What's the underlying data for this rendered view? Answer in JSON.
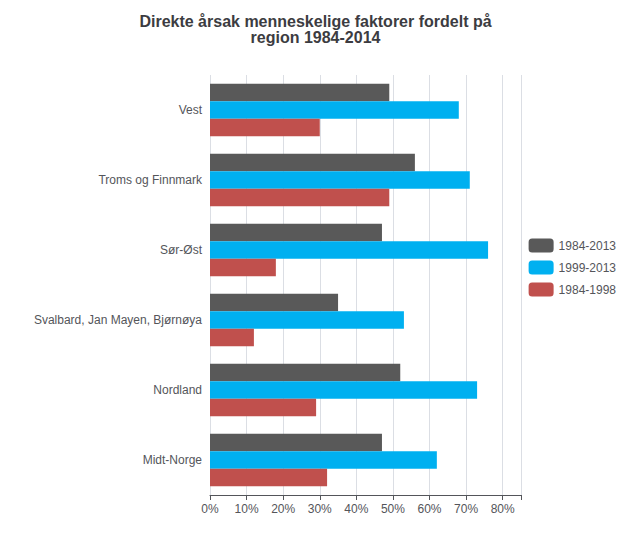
{
  "chart_data": {
    "type": "bar",
    "orientation": "horizontal",
    "title": "Direkte årsak menneskelige faktorer fordelt på\nregion 1984-2014",
    "categories": [
      "Midt-Norge",
      "Nordland",
      "Svalbard, Jan Mayen, Bjørnøya",
      "Sør-Øst",
      "Troms og Finnmark",
      "Vest"
    ],
    "series": [
      {
        "name": "1984-2013",
        "color": "#595959",
        "values": [
          47,
          52,
          35,
          47,
          56,
          49
        ]
      },
      {
        "name": "1999-2013",
        "color": "#00B0F0",
        "values": [
          62,
          73,
          53,
          76,
          71,
          68
        ]
      },
      {
        "name": "1984-1998",
        "color": "#C0504D",
        "values": [
          32,
          29,
          12,
          18,
          49,
          30
        ]
      }
    ],
    "xlim": [
      0,
      85
    ],
    "xticks": [
      {
        "value": 0,
        "label": "0%"
      },
      {
        "value": 10,
        "label": "10%"
      },
      {
        "value": 20,
        "label": "20%"
      },
      {
        "value": 30,
        "label": "30%"
      },
      {
        "value": 40,
        "label": "40%"
      },
      {
        "value": 50,
        "label": "50%"
      },
      {
        "value": 60,
        "label": "60%"
      },
      {
        "value": 70,
        "label": "70%"
      },
      {
        "value": 80,
        "label": "80%"
      }
    ],
    "grid": true,
    "legend": "right"
  }
}
